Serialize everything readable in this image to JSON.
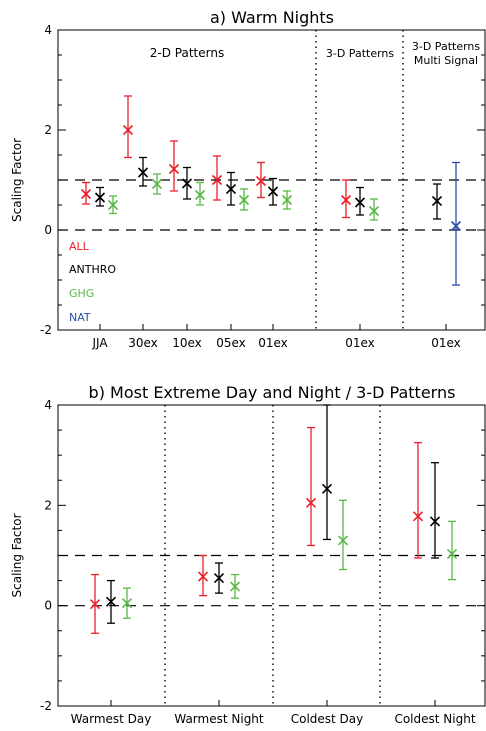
{
  "chart_data": [
    {
      "type": "errorbar",
      "title": "a) Warm Nights",
      "ylabel": "Scaling Factor",
      "ylim": [
        -2,
        4
      ],
      "yticks": [
        "4",
        "2",
        "0",
        "-2"
      ],
      "reference_lines": [
        0,
        1
      ],
      "sections": [
        {
          "label": "2-D Patterns"
        },
        {
          "label": "3-D Patterns"
        },
        {
          "label_lines": [
            "3-D Patterns",
            "Multi Signal"
          ]
        }
      ],
      "categories": [
        "JJA",
        "30ex",
        "10ex",
        "05ex",
        "01ex",
        "01ex",
        "01ex"
      ],
      "legend": [
        {
          "name": "ALL",
          "color": "#e8202a"
        },
        {
          "name": "ANTHRO",
          "color": "#000000"
        },
        {
          "name": "GHG",
          "color": "#5ab848"
        },
        {
          "name": "NAT",
          "color": "#2a4fb0"
        }
      ],
      "points": [
        {
          "category": "JJA",
          "series": "ALL",
          "best": 0.72,
          "low": 0.52,
          "high": 0.95
        },
        {
          "category": "JJA",
          "series": "ANTHRO",
          "best": 0.65,
          "low": 0.48,
          "high": 0.85
        },
        {
          "category": "JJA",
          "series": "GHG",
          "best": 0.5,
          "low": 0.33,
          "high": 0.68
        },
        {
          "category": "30ex",
          "series": "ALL",
          "best": 2.0,
          "low": 1.45,
          "high": 2.68
        },
        {
          "category": "30ex",
          "series": "ANTHRO",
          "best": 1.15,
          "low": 0.88,
          "high": 1.45
        },
        {
          "category": "30ex",
          "series": "GHG",
          "best": 0.92,
          "low": 0.72,
          "high": 1.12
        },
        {
          "category": "10ex",
          "series": "ALL",
          "best": 1.22,
          "low": 0.78,
          "high": 1.78
        },
        {
          "category": "10ex",
          "series": "ANTHRO",
          "best": 0.93,
          "low": 0.62,
          "high": 1.25
        },
        {
          "category": "10ex",
          "series": "GHG",
          "best": 0.7,
          "low": 0.5,
          "high": 0.95
        },
        {
          "category": "05ex",
          "series": "ALL",
          "best": 1.0,
          "low": 0.6,
          "high": 1.48
        },
        {
          "category": "05ex",
          "series": "ANTHRO",
          "best": 0.82,
          "low": 0.5,
          "high": 1.15
        },
        {
          "category": "05ex",
          "series": "GHG",
          "best": 0.6,
          "low": 0.4,
          "high": 0.82
        },
        {
          "category": "01ex",
          "series": "ALL",
          "best": 0.98,
          "low": 0.65,
          "high": 1.35
        },
        {
          "category": "01ex",
          "series": "ANTHRO",
          "best": 0.77,
          "low": 0.5,
          "high": 1.03
        },
        {
          "category": "01ex",
          "series": "GHG",
          "best": 0.6,
          "low": 0.42,
          "high": 0.78
        },
        {
          "category": "01ex (3-D)",
          "series": "ALL",
          "best": 0.6,
          "low": 0.25,
          "high": 1.0
        },
        {
          "category": "01ex (3-D)",
          "series": "ANTHRO",
          "best": 0.55,
          "low": 0.3,
          "high": 0.85
        },
        {
          "category": "01ex (3-D)",
          "series": "GHG",
          "best": 0.38,
          "low": 0.2,
          "high": 0.62
        },
        {
          "category": "01ex (multi)",
          "series": "ANTHRO",
          "best": 0.58,
          "low": 0.22,
          "high": 0.92
        },
        {
          "category": "01ex (multi)",
          "series": "NAT",
          "best": 0.08,
          "low": -1.1,
          "high": 1.35
        }
      ]
    },
    {
      "type": "errorbar",
      "title": "b) Most Extreme Day and Night / 3-D Patterns",
      "ylabel": "Scaling Factor",
      "ylim": [
        -2,
        4
      ],
      "yticks": [
        "4",
        "2",
        "0",
        "-2"
      ],
      "reference_lines": [
        0,
        1
      ],
      "categories": [
        "Warmest Day",
        "Warmest Night",
        "Coldest Day",
        "Coldest Night"
      ],
      "points": [
        {
          "category": "Warmest Day",
          "series": "ALL",
          "best": 0.03,
          "low": -0.55,
          "high": 0.62
        },
        {
          "category": "Warmest Day",
          "series": "ANTHRO",
          "best": 0.08,
          "low": -0.35,
          "high": 0.5
        },
        {
          "category": "Warmest Day",
          "series": "GHG",
          "best": 0.05,
          "low": -0.25,
          "high": 0.35
        },
        {
          "category": "Warmest Night",
          "series": "ALL",
          "best": 0.58,
          "low": 0.2,
          "high": 1.0
        },
        {
          "category": "Warmest Night",
          "series": "ANTHRO",
          "best": 0.55,
          "low": 0.25,
          "high": 0.85
        },
        {
          "category": "Warmest Night",
          "series": "GHG",
          "best": 0.38,
          "low": 0.15,
          "high": 0.62
        },
        {
          "category": "Coldest Day",
          "series": "ALL",
          "best": 2.05,
          "low": 1.2,
          "high": 3.55
        },
        {
          "category": "Coldest Day",
          "series": "ANTHRO",
          "best": 2.33,
          "low": 1.32,
          "high": 4.2
        },
        {
          "category": "Coldest Day",
          "series": "GHG",
          "best": 1.3,
          "low": 0.72,
          "high": 2.1
        },
        {
          "category": "Coldest Night",
          "series": "ALL",
          "best": 1.78,
          "low": 0.95,
          "high": 3.25
        },
        {
          "category": "Coldest Night",
          "series": "ANTHRO",
          "best": 1.68,
          "low": 0.95,
          "high": 2.85
        },
        {
          "category": "Coldest Night",
          "series": "GHG",
          "best": 1.03,
          "low": 0.52,
          "high": 1.68
        }
      ]
    }
  ]
}
